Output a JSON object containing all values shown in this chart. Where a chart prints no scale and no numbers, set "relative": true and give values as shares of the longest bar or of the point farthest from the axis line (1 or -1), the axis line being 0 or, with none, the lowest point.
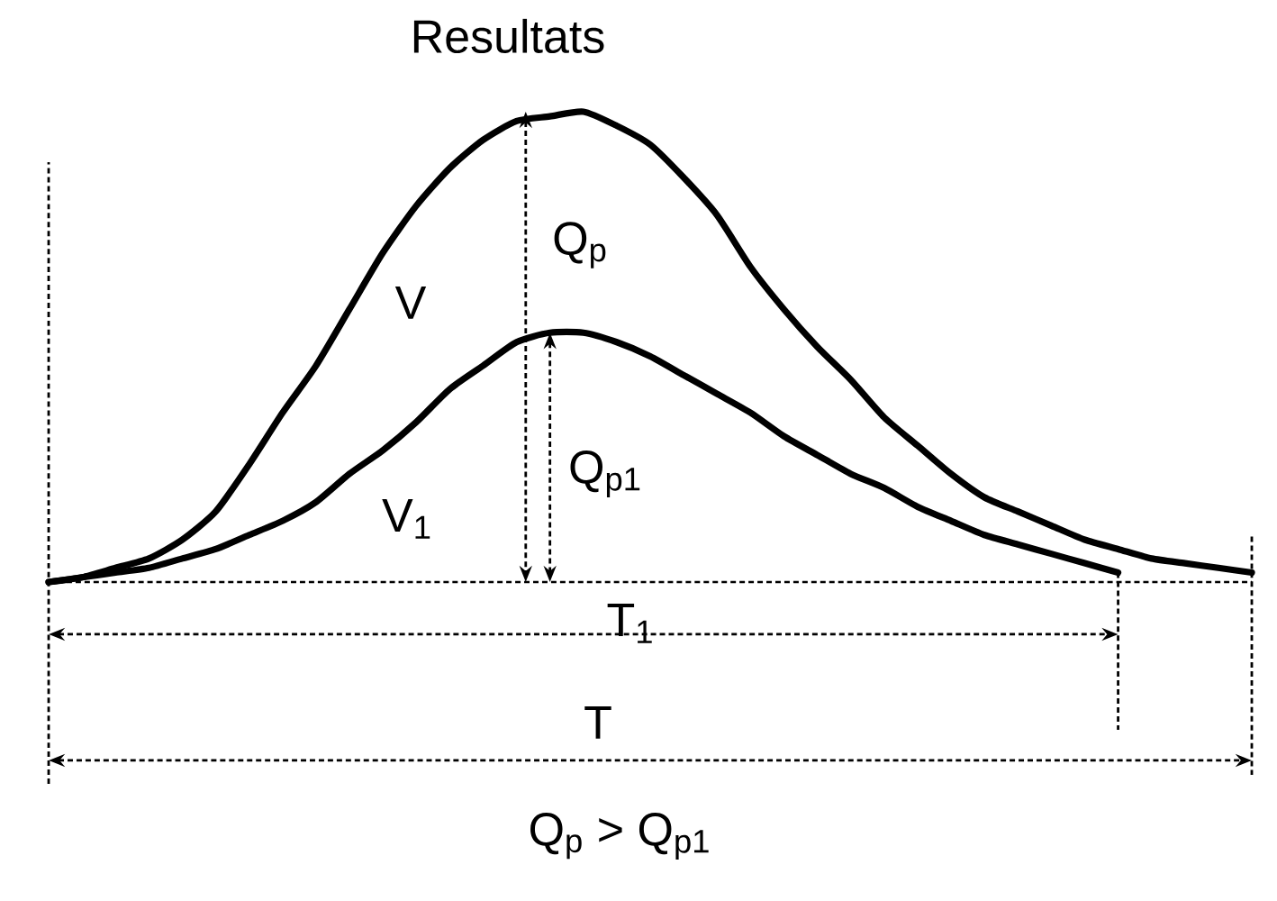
{
  "chart_data": {
    "type": "line",
    "title": "Resultats",
    "categories": [
      null,
      null,
      null,
      null,
      null,
      null,
      null,
      null,
      null,
      null,
      null,
      null,
      null,
      null,
      null,
      null,
      null,
      null,
      null,
      null,
      null,
      null,
      null,
      null,
      null,
      null,
      null,
      null,
      null,
      null,
      null,
      null,
      null,
      null,
      null,
      null,
      null
    ],
    "series": [
      {
        "name": "V",
        "color": "#000000",
        "values": [
          0,
          0.01,
          0.03,
          0.05,
          0.09,
          0.15,
          0.25,
          0.36,
          0.46,
          0.58,
          0.7,
          0.8,
          0.88,
          0.94,
          0.98,
          0.99,
          1,
          0.97,
          0.93,
          0.86,
          0.78,
          0.67,
          0.58,
          0.5,
          0.43,
          0.35,
          0.29,
          0.23,
          0.18,
          0.15,
          0.12,
          0.09,
          0.07,
          0.05,
          0.04,
          0.03,
          0.02
        ]
      },
      {
        "name": "V$_{1}$",
        "color": "#000000",
        "values": [
          0,
          0.01,
          0.02,
          0.03,
          0.05,
          0.07,
          0.1,
          0.13,
          0.17,
          0.23,
          0.28,
          0.34,
          0.41,
          0.46,
          0.51,
          0.53,
          0.53,
          0.51,
          0.48,
          0.44,
          0.4,
          0.36,
          0.31,
          0.27,
          0.23,
          0.2,
          0.16,
          0.13,
          0.1,
          0.08,
          0.06,
          0.04,
          0.02,
          null,
          null,
          null,
          null
        ]
      }
    ],
    "relative": true,
    "legend": false,
    "marker": "none",
    "line_style": "solid",
    "annotations": [
      "Q$_{p}$",
      "Q$_{p1}$",
      "T$_{1}$",
      "T",
      "Q$_{p}$ > Q$_{p1}$"
    ]
  }
}
